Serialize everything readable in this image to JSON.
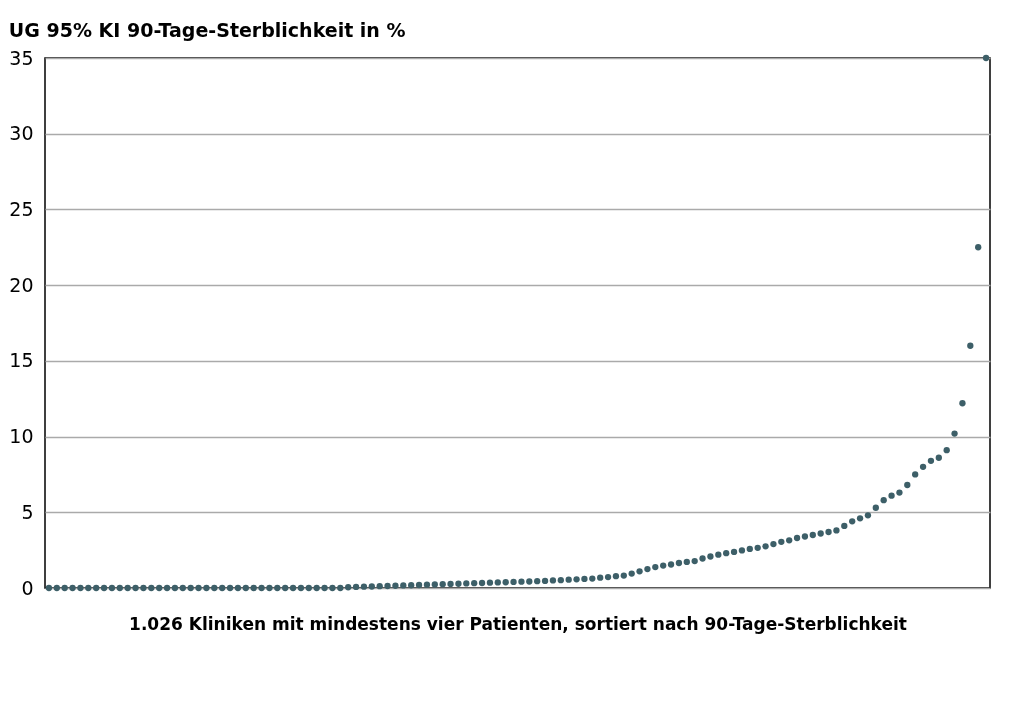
{
  "chart_data": {
    "type": "scatter",
    "title": "UG 95% KI 90-Tage-Sterblichkeit in %",
    "xlabel": "1.026 Kliniken mit mindestens vier Patienten, sortiert nach 90-Tage-Sterblichkeit",
    "categories": [
      null,
      null,
      null,
      null,
      null,
      null,
      null,
      null,
      null,
      null,
      null,
      null,
      null,
      null,
      null,
      null,
      null,
      null,
      null,
      null,
      null,
      null,
      null,
      null,
      null,
      null,
      null,
      null,
      null,
      null,
      null,
      null,
      null,
      null,
      null,
      null,
      null,
      null,
      null,
      null,
      null,
      null,
      null,
      null,
      null,
      null,
      null,
      null,
      null,
      null,
      null,
      null,
      null,
      null,
      null,
      null,
      null,
      null,
      null,
      null,
      null,
      null,
      null,
      null,
      null,
      null,
      null,
      null,
      null,
      null,
      null,
      null,
      null,
      null,
      null,
      null,
      null,
      null,
      null,
      null,
      null,
      null,
      null,
      null,
      null,
      null,
      null,
      null,
      null,
      null,
      null,
      null,
      null,
      null,
      null,
      null,
      null,
      null,
      null,
      null,
      null,
      null,
      null,
      null,
      null,
      null,
      null,
      null,
      null,
      null,
      null,
      null,
      null,
      null,
      null,
      null,
      null,
      null,
      null,
      null
    ],
    "series": [
      {
        "color": "#3d5f68",
        "values": [
          0,
          0,
          0,
          0,
          0,
          0,
          0,
          0,
          0,
          0,
          0,
          0,
          0,
          0,
          0,
          0,
          0,
          0,
          0,
          0,
          0,
          0,
          0,
          0,
          0,
          0,
          0,
          0,
          0,
          0,
          0,
          0,
          0,
          0,
          0,
          0,
          0,
          0,
          0.05,
          0.07,
          0.09,
          0.1,
          0.12,
          0.13,
          0.15,
          0.17,
          0.18,
          0.2,
          0.22,
          0.23,
          0.25,
          0.27,
          0.28,
          0.3,
          0.32,
          0.33,
          0.35,
          0.37,
          0.38,
          0.4,
          0.42,
          0.43,
          0.45,
          0.47,
          0.5,
          0.52,
          0.55,
          0.57,
          0.6,
          0.62,
          0.68,
          0.72,
          0.78,
          0.82,
          0.95,
          1.1,
          1.25,
          1.38,
          1.48,
          1.55,
          1.65,
          1.72,
          1.78,
          1.95,
          2.08,
          2.2,
          2.3,
          2.38,
          2.48,
          2.58,
          2.65,
          2.75,
          2.9,
          3.05,
          3.15,
          3.3,
          3.4,
          3.5,
          3.6,
          3.7,
          3.8,
          4.1,
          4.4,
          4.6,
          4.8,
          5.3,
          5.8,
          6.1,
          6.3,
          6.8,
          7.5,
          8.0,
          8.4,
          8.6,
          9.1,
          10.2,
          12.2,
          16.0,
          22.5,
          35
        ]
      }
    ],
    "ylim": [
      0,
      35
    ],
    "yticks": [
      0,
      5,
      10,
      15,
      20,
      25,
      30,
      35
    ],
    "tick_labels": "y",
    "grid": "y",
    "marker": "circle"
  }
}
